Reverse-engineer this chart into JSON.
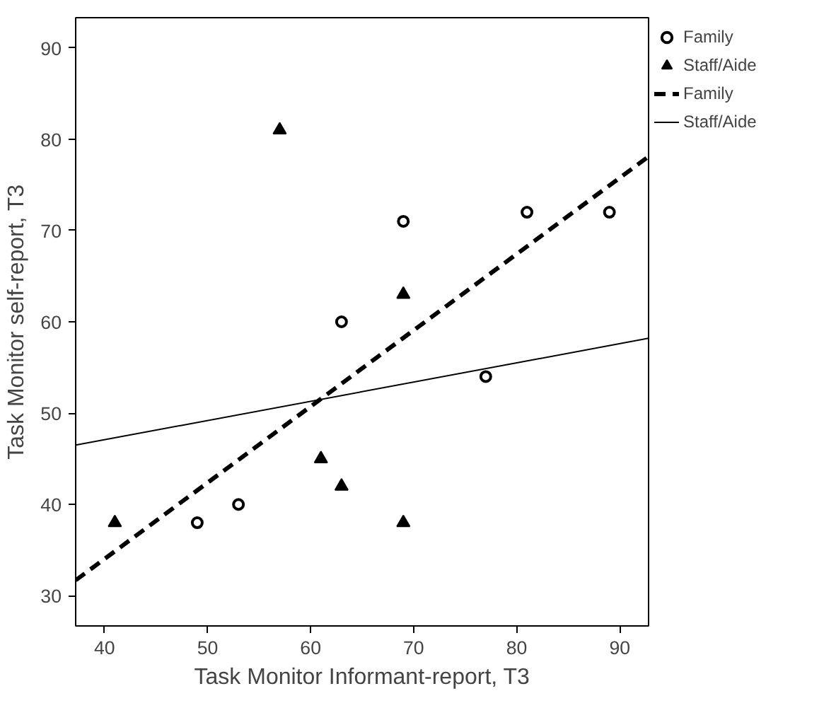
{
  "chart_data": {
    "type": "scatter",
    "xlabel": "Task Monitor Informant-report, T3",
    "ylabel": "Task Monitor self-report, T3",
    "xlim": [
      37.2,
      92.8
    ],
    "ylim": [
      26.7,
      93.3
    ],
    "xticks": [
      40,
      50,
      60,
      70,
      80,
      90
    ],
    "yticks": [
      30,
      40,
      50,
      60,
      70,
      80,
      90
    ],
    "grid": false,
    "legend": "top right",
    "series": [
      {
        "name": "Family",
        "color": "#000000",
        "marker": "circle",
        "x": [
          49,
          53,
          63,
          69,
          77,
          81,
          89
        ],
        "values": [
          38,
          40,
          60,
          71,
          54,
          72,
          72
        ]
      },
      {
        "name": "Staff/Aide",
        "color": "#000000",
        "marker": "triangle",
        "x": [
          41,
          57,
          61,
          63,
          69,
          69
        ],
        "values": [
          38,
          81,
          45,
          42,
          63,
          38
        ]
      },
      {
        "name": "Family",
        "type": "line",
        "color": "#000000",
        "line_style": "dashed",
        "marker": "none",
        "x": [
          37.2,
          92.8
        ],
        "values": [
          31.7,
          78.1
        ]
      },
      {
        "name": "Staff/Aide",
        "type": "line",
        "color": "#000000",
        "line_style": "solid",
        "marker": "none",
        "x": [
          37.2,
          92.8
        ],
        "values": [
          46.5,
          58.2
        ]
      }
    ]
  }
}
